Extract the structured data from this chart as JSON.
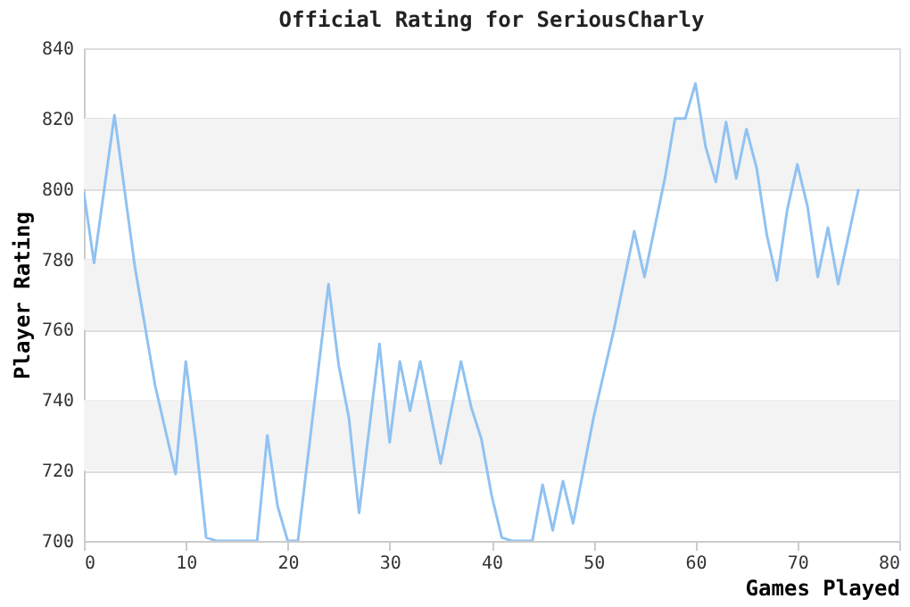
{
  "chart_data": {
    "type": "line",
    "title": "Official Rating for SeriousCharly",
    "xlabel": "Games Played",
    "ylabel": "Player Rating",
    "x": [
      0,
      1,
      3,
      5,
      7,
      9,
      10,
      11,
      12,
      13,
      17,
      18,
      19,
      20,
      21,
      24,
      25,
      26,
      27,
      29,
      30,
      31,
      32,
      33,
      35,
      37,
      38,
      39,
      40,
      41,
      42,
      44,
      45,
      46,
      47,
      48,
      50,
      52,
      54,
      55,
      57,
      58,
      59,
      60,
      61,
      62,
      63,
      64,
      65,
      66,
      67,
      68,
      69,
      70,
      71,
      72,
      73,
      74,
      76
    ],
    "series": [
      {
        "color": "#90c2f2",
        "values": [
          799,
          779,
          821,
          778,
          744,
          719,
          751,
          728,
          701,
          700,
          700,
          730,
          710,
          700,
          700,
          773,
          750,
          735,
          708,
          756,
          728,
          751,
          737,
          751,
          722,
          751,
          738,
          729,
          713,
          701,
          700,
          700,
          716,
          703,
          717,
          705,
          735,
          760,
          788,
          775,
          803,
          820,
          820,
          830,
          812,
          802,
          819,
          803,
          817,
          806,
          787,
          774,
          794,
          807,
          795,
          775,
          789,
          773,
          800
        ]
      }
    ],
    "xlim": [
      0,
      80
    ],
    "xticks": [
      0,
      10,
      20,
      30,
      40,
      50,
      60,
      70,
      80
    ],
    "ylim": [
      700,
      840
    ],
    "yticks": [
      700,
      720,
      740,
      760,
      780,
      800,
      820,
      840
    ],
    "grid": "y",
    "marker": "none",
    "line_style": "solid",
    "bands": [
      {
        "axis": "y",
        "from": 720,
        "to": 740,
        "color": "#f3f3f3"
      },
      {
        "axis": "y",
        "from": 760,
        "to": 780,
        "color": "#f3f3f3"
      },
      {
        "axis": "y",
        "from": 800,
        "to": 820,
        "color": "#f3f3f3"
      }
    ]
  }
}
